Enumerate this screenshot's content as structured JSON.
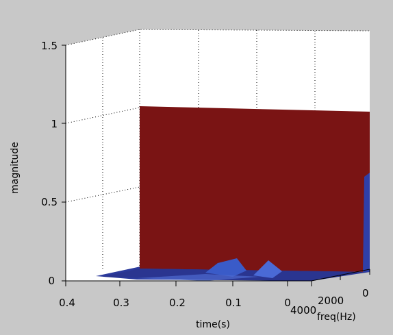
{
  "chart_data": {
    "type": "surface3d",
    "title": "",
    "xlabel": "time(s)",
    "ylabel": "freq(Hz)",
    "zlabel": "magnitude",
    "x_ticks": [
      "0.4",
      "0.3",
      "0.2",
      "0.1",
      "0"
    ],
    "y_ticks": [
      "4000",
      "2000",
      "0"
    ],
    "z_ticks": [
      "0",
      "0.5",
      "1",
      "1.5"
    ],
    "xlim": [
      0,
      0.4
    ],
    "ylim": [
      0,
      4000
    ],
    "zlim": [
      0,
      1.5
    ],
    "grid": true,
    "colors": {
      "background": "#c8c8c8",
      "axes_face": "#ffffff",
      "surface_high": "#7a1414",
      "surface_low": "#2a3590"
    },
    "surface_features": [
      {
        "description_value": "wall",
        "freq_hz": 0,
        "magnitude": 1.0,
        "time_range": [
          0,
          0.27
        ]
      },
      {
        "description_value": "peak",
        "freq_hz": 1000,
        "time_s": 0.11,
        "magnitude": 0.07
      },
      {
        "description_value": "peak",
        "freq_hz": 1000,
        "time_s": 0.04,
        "magnitude": 0.06
      }
    ]
  }
}
